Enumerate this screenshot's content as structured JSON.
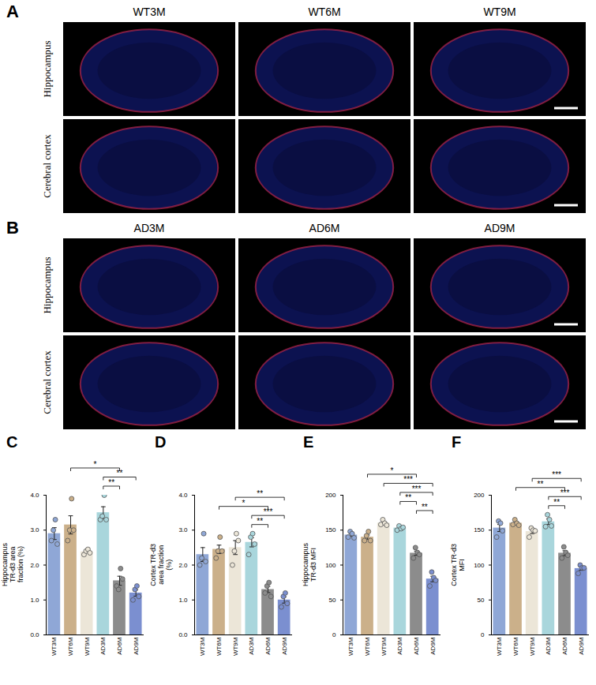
{
  "image_panels": [
    {
      "letter": "A",
      "columns": [
        "WT3M",
        "WT6M",
        "WT9M"
      ],
      "rows": [
        "Hippocampus",
        "Cerebral cortex"
      ]
    },
    {
      "letter": "B",
      "columns": [
        "AD3M",
        "AD6M",
        "AD9M"
      ],
      "rows": [
        "Hippocampus",
        "Cerebral cortex"
      ]
    }
  ],
  "chart_data": [
    {
      "type": "bar",
      "letter": "C",
      "y_label": "Hippocampus TR-d3 area fraction (%)",
      "categories": [
        "WT3M",
        "WT6M",
        "WT9M",
        "AD3M",
        "AD6M",
        "AD9M"
      ],
      "values": [
        2.9,
        3.15,
        2.38,
        3.5,
        1.55,
        1.2
      ],
      "errors": [
        0.17,
        0.26,
        0.03,
        0.17,
        0.13,
        0.09
      ],
      "points": [
        [
          2.7,
          3.0,
          3.3,
          2.6
        ],
        [
          2.7,
          3.0,
          3.9,
          3.0
        ],
        [
          2.3,
          2.4,
          2.45,
          2.35
        ],
        [
          3.3,
          3.4,
          4.0,
          3.3
        ],
        [
          1.4,
          1.3,
          1.9,
          1.6
        ],
        [
          1.0,
          1.3,
          1.4,
          1.1
        ]
      ],
      "colors": [
        "#8fa7d6",
        "#cbb08a",
        "#ece6d8",
        "#a9d6dc",
        "#8c8c8c",
        "#7b8fd0"
      ],
      "ylim": [
        0,
        4
      ],
      "yticks": [
        0,
        1,
        2,
        3,
        4
      ],
      "comparisons": [
        {
          "pair": [
            "WT6M",
            "AD6M"
          ],
          "label": "*"
        },
        {
          "pair": [
            "AD3M",
            "AD9M"
          ],
          "label": "**"
        },
        {
          "pair": [
            "AD3M",
            "AD6M"
          ],
          "label": "**"
        }
      ]
    },
    {
      "type": "bar",
      "letter": "D",
      "y_label": "Cortex TR-d3 area fraction (%)",
      "categories": [
        "WT3M",
        "WT6M",
        "WT9M",
        "AD3M",
        "AD6M",
        "AD9M"
      ],
      "values": [
        2.3,
        2.45,
        2.5,
        2.65,
        1.3,
        1.0
      ],
      "errors": [
        0.2,
        0.12,
        0.2,
        0.13,
        0.09,
        0.09
      ],
      "points": [
        [
          2.0,
          2.2,
          2.9,
          2.1
        ],
        [
          2.2,
          2.4,
          2.8,
          2.4
        ],
        [
          2.0,
          2.4,
          2.9,
          2.7
        ],
        [
          2.3,
          2.8,
          2.9,
          2.6
        ],
        [
          1.2,
          1.4,
          1.5,
          1.1
        ],
        [
          0.8,
          1.1,
          1.2,
          0.9
        ]
      ],
      "colors": [
        "#8fa7d6",
        "#cbb08a",
        "#ece6d8",
        "#a9d6dc",
        "#8c8c8c",
        "#7b8fd0"
      ],
      "ylim": [
        0,
        4
      ],
      "yticks": [
        0,
        1,
        2,
        3,
        4
      ],
      "comparisons": [
        {
          "pair": [
            "WT9M",
            "AD9M"
          ],
          "label": "**"
        },
        {
          "pair": [
            "WT6M",
            "AD6M"
          ],
          "label": "*"
        },
        {
          "pair": [
            "AD3M",
            "AD9M"
          ],
          "label": "***"
        },
        {
          "pair": [
            "AD3M",
            "AD6M"
          ],
          "label": "**"
        }
      ]
    },
    {
      "type": "bar",
      "letter": "E",
      "y_label": "Hippocampus TR-d3 MFI",
      "categories": [
        "WT3M",
        "WT6M",
        "WT9M",
        "AD3M",
        "AD6M",
        "AD9M"
      ],
      "values": [
        143,
        140,
        160,
        153,
        117,
        80
      ],
      "errors": [
        2,
        3,
        2,
        1.5,
        3,
        4
      ],
      "points": [
        [
          140,
          148,
          145,
          139
        ],
        [
          135,
          142,
          148,
          135
        ],
        [
          158,
          165,
          160,
          157
        ],
        [
          150,
          156,
          152,
          154
        ],
        [
          110,
          125,
          118,
          115
        ],
        [
          70,
          90,
          82,
          78
        ]
      ],
      "colors": [
        "#8fa7d6",
        "#cbb08a",
        "#ece6d8",
        "#a9d6dc",
        "#8c8c8c",
        "#7b8fd0"
      ],
      "ylim": [
        0,
        200
      ],
      "yticks": [
        0,
        50,
        100,
        150,
        200
      ],
      "comparisons": [
        {
          "pair": [
            "WT6M",
            "AD6M"
          ],
          "label": "*"
        },
        {
          "pair": [
            "WT9M",
            "AD9M"
          ],
          "label": "***"
        },
        {
          "pair": [
            "AD3M",
            "AD9M"
          ],
          "label": "***"
        },
        {
          "pair": [
            "AD3M",
            "AD6M"
          ],
          "label": "**"
        },
        {
          "pair": [
            "AD6M",
            "AD9M"
          ],
          "label": "**"
        }
      ]
    },
    {
      "type": "bar",
      "letter": "F",
      "y_label": "Cortex TR-d3 MFI",
      "categories": [
        "WT3M",
        "WT6M",
        "WT9M",
        "AD3M",
        "AD6M",
        "AD9M"
      ],
      "values": [
        153,
        160,
        148,
        162,
        117,
        95
      ],
      "errors": [
        5,
        2,
        3,
        4,
        3.5,
        2.5
      ],
      "points": [
        [
          140,
          163,
          160,
          149
        ],
        [
          158,
          165,
          160,
          157
        ],
        [
          140,
          153,
          150,
          149
        ],
        [
          155,
          172,
          165,
          156
        ],
        [
          110,
          126,
          118,
          114
        ],
        [
          88,
          100,
          96,
          96
        ]
      ],
      "colors": [
        "#8fa7d6",
        "#cbb08a",
        "#ece6d8",
        "#a9d6dc",
        "#8c8c8c",
        "#7b8fd0"
      ],
      "ylim": [
        0,
        200
      ],
      "yticks": [
        0,
        50,
        100,
        150,
        200
      ],
      "comparisons": [
        {
          "pair": [
            "WT9M",
            "AD9M"
          ],
          "label": "***"
        },
        {
          "pair": [
            "WT6M",
            "AD6M"
          ],
          "label": "**"
        },
        {
          "pair": [
            "AD3M",
            "AD9M"
          ],
          "label": "***"
        },
        {
          "pair": [
            "AD3M",
            "AD6M"
          ],
          "label": "**"
        }
      ]
    }
  ]
}
